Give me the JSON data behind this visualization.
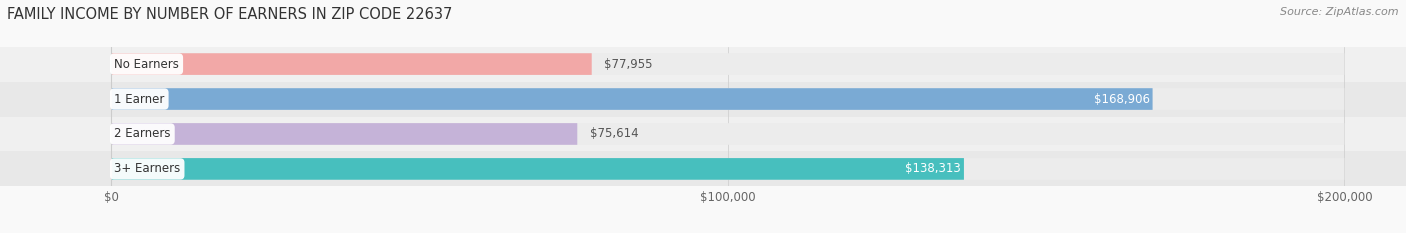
{
  "title": "FAMILY INCOME BY NUMBER OF EARNERS IN ZIP CODE 22637",
  "source": "Source: ZipAtlas.com",
  "categories": [
    "No Earners",
    "1 Earner",
    "2 Earners",
    "3+ Earners"
  ],
  "values": [
    77955,
    168906,
    75614,
    138313
  ],
  "bar_colors": [
    "#f2a8a7",
    "#7aaad4",
    "#c5b3d8",
    "#47bfbe"
  ],
  "label_colors": [
    "#555555",
    "#ffffff",
    "#555555",
    "#ffffff"
  ],
  "bar_bg_color": "#ececec",
  "background_color": "#f9f9f9",
  "row_bg_colors": [
    "#f5f5f5",
    "#eeeeee",
    "#f5f5f5",
    "#eeeeee"
  ],
  "xlim": [
    -18000,
    210000
  ],
  "xmin": 0,
  "xmax": 200000,
  "xticks": [
    0,
    100000,
    200000
  ],
  "xtick_labels": [
    "$0",
    "$100,000",
    "$200,000"
  ],
  "value_labels": [
    "$77,955",
    "$168,906",
    "$75,614",
    "$138,313"
  ],
  "title_fontsize": 10.5,
  "source_fontsize": 8,
  "label_fontsize": 8.5,
  "tick_fontsize": 8.5,
  "bar_height": 0.62,
  "figsize": [
    14.06,
    2.33
  ],
  "dpi": 100
}
